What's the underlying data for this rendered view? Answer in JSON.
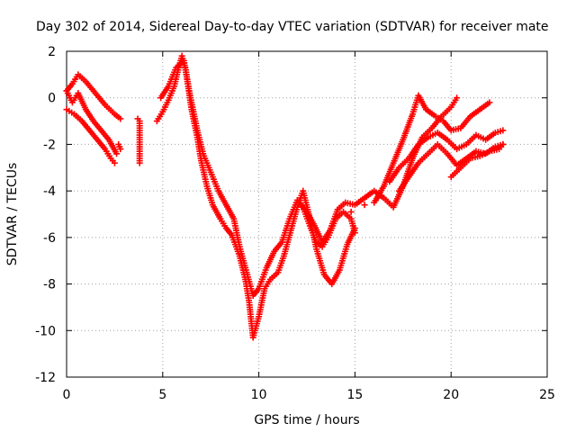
{
  "chart_data": {
    "type": "scatter",
    "title": "Day 302 of 2014, Sidereal Day-to-day VTEC variation (SDTVAR) for receiver mate",
    "xlabel": "GPS time / hours",
    "ylabel": "SDTVAR / TECUs",
    "xlim": [
      0,
      25
    ],
    "ylim": [
      -12,
      2
    ],
    "x_ticks": [
      "0",
      "5",
      "10",
      "15",
      "20",
      "25"
    ],
    "y_ticks": [
      "2",
      "0",
      "-2",
      "-4",
      "-6",
      "-8",
      "-10",
      "-12"
    ],
    "grid": true,
    "marker": "+",
    "color": "#ff0000",
    "series": [
      {
        "points": [
          [
            0,
            0.3
          ],
          [
            0.3,
            0.6
          ],
          [
            0.6,
            1.0
          ],
          [
            1.0,
            0.7
          ],
          [
            1.5,
            0.2
          ],
          [
            2.0,
            -0.3
          ],
          [
            2.5,
            -0.7
          ],
          [
            2.8,
            -0.9
          ]
        ]
      },
      {
        "points": [
          [
            0,
            -0.5
          ],
          [
            0.4,
            -0.7
          ],
          [
            0.8,
            -1.0
          ],
          [
            1.2,
            -1.4
          ],
          [
            1.6,
            -1.8
          ],
          [
            2.0,
            -2.2
          ],
          [
            2.3,
            -2.6
          ],
          [
            2.5,
            -2.8
          ]
        ]
      },
      {
        "points": [
          [
            2.7,
            -2.0
          ],
          [
            2.8,
            -2.2
          ],
          [
            3.7,
            -0.9
          ],
          [
            3.8,
            -1.0
          ],
          [
            3.8,
            -2.0
          ],
          [
            3.8,
            -2.8
          ]
        ]
      },
      {
        "points": [
          [
            4.7,
            -1.0
          ],
          [
            5.0,
            -0.6
          ],
          [
            5.3,
            -0.1
          ],
          [
            5.6,
            0.5
          ],
          [
            5.8,
            1.2
          ],
          [
            6.0,
            1.8
          ],
          [
            6.2,
            1.2
          ],
          [
            6.5,
            -0.5
          ],
          [
            6.8,
            -1.7
          ],
          [
            7.0,
            -2.7
          ],
          [
            7.3,
            -3.8
          ],
          [
            7.6,
            -4.6
          ],
          [
            8.0,
            -5.2
          ],
          [
            8.3,
            -5.6
          ],
          [
            8.6,
            -5.9
          ],
          [
            9.0,
            -6.8
          ],
          [
            9.3,
            -7.8
          ],
          [
            9.5,
            -8.8
          ],
          [
            9.7,
            -10.3
          ],
          [
            10.0,
            -9.4
          ],
          [
            10.3,
            -8.2
          ],
          [
            10.6,
            -7.8
          ],
          [
            11.0,
            -7.5
          ],
          [
            11.3,
            -6.8
          ],
          [
            11.7,
            -5.6
          ],
          [
            12.0,
            -4.7
          ],
          [
            12.3,
            -4.0
          ],
          [
            12.6,
            -5.0
          ],
          [
            13.0,
            -6.5
          ],
          [
            13.4,
            -7.6
          ],
          [
            13.8,
            -8.0
          ],
          [
            14.2,
            -7.4
          ],
          [
            14.6,
            -6.3
          ],
          [
            15.0,
            -5.6
          ]
        ]
      },
      {
        "points": [
          [
            4.9,
            0.0
          ],
          [
            5.3,
            0.5
          ],
          [
            5.7,
            1.3
          ],
          [
            6.1,
            1.6
          ],
          [
            6.4,
            0.2
          ],
          [
            6.8,
            -1.4
          ],
          [
            7.1,
            -2.4
          ],
          [
            7.5,
            -3.2
          ],
          [
            7.9,
            -4.0
          ],
          [
            8.3,
            -4.6
          ],
          [
            8.7,
            -5.2
          ],
          [
            9.0,
            -6.4
          ],
          [
            9.4,
            -7.6
          ],
          [
            9.7,
            -8.5
          ],
          [
            10.0,
            -8.2
          ],
          [
            10.4,
            -7.3
          ],
          [
            10.8,
            -6.6
          ],
          [
            11.2,
            -6.2
          ],
          [
            11.6,
            -5.2
          ],
          [
            12.0,
            -4.4
          ],
          [
            12.5,
            -4.9
          ],
          [
            12.9,
            -5.5
          ],
          [
            13.3,
            -6.2
          ],
          [
            13.7,
            -5.7
          ],
          [
            14.1,
            -4.8
          ],
          [
            14.5,
            -4.5
          ],
          [
            15.0,
            -4.6
          ],
          [
            15.5,
            -4.3
          ],
          [
            16.0,
            -4.0
          ],
          [
            16.5,
            -4.3
          ],
          [
            17.0,
            -4.7
          ],
          [
            17.5,
            -3.8
          ],
          [
            18.0,
            -2.6
          ],
          [
            18.5,
            -1.7
          ],
          [
            19.0,
            -1.3
          ],
          [
            19.5,
            -0.8
          ],
          [
            20.0,
            -0.4
          ],
          [
            20.3,
            0.0
          ]
        ]
      },
      {
        "points": [
          [
            16.0,
            -4.5
          ],
          [
            16.5,
            -3.8
          ],
          [
            17.0,
            -2.8
          ],
          [
            17.5,
            -1.8
          ],
          [
            18.0,
            -0.7
          ],
          [
            18.3,
            0.1
          ],
          [
            18.7,
            -0.5
          ],
          [
            19.2,
            -0.8
          ],
          [
            19.6,
            -1.0
          ],
          [
            20.0,
            -1.4
          ],
          [
            20.5,
            -1.3
          ],
          [
            21.0,
            -0.8
          ],
          [
            21.5,
            -0.5
          ],
          [
            22.0,
            -0.2
          ]
        ]
      },
      {
        "points": [
          [
            14.8,
            -4.9
          ],
          [
            15.5,
            -4.6
          ],
          [
            16.2,
            -4.3
          ],
          [
            16.8,
            -3.6
          ],
          [
            17.3,
            -3.0
          ],
          [
            17.8,
            -2.6
          ],
          [
            18.3,
            -2.0
          ],
          [
            18.8,
            -1.7
          ],
          [
            19.3,
            -1.5
          ],
          [
            19.8,
            -1.8
          ],
          [
            20.3,
            -2.2
          ],
          [
            20.8,
            -2.0
          ],
          [
            21.3,
            -1.6
          ],
          [
            21.8,
            -1.8
          ],
          [
            22.3,
            -1.5
          ],
          [
            22.7,
            -1.4
          ]
        ]
      },
      {
        "points": [
          [
            17.3,
            -4.0
          ],
          [
            17.8,
            -3.4
          ],
          [
            18.3,
            -2.8
          ],
          [
            18.8,
            -2.4
          ],
          [
            19.3,
            -2.0
          ],
          [
            19.8,
            -2.4
          ],
          [
            20.3,
            -2.9
          ],
          [
            20.8,
            -2.6
          ],
          [
            21.3,
            -2.3
          ],
          [
            21.8,
            -2.4
          ],
          [
            22.3,
            -2.1
          ],
          [
            22.7,
            -2.0
          ]
        ]
      },
      {
        "points": [
          [
            20.0,
            -3.4
          ],
          [
            20.5,
            -3.0
          ],
          [
            21.0,
            -2.6
          ],
          [
            21.5,
            -2.5
          ],
          [
            22.0,
            -2.3
          ],
          [
            22.5,
            -2.2
          ],
          [
            22.7,
            -2.0
          ]
        ]
      },
      {
        "points": [
          [
            12.3,
            -4.7
          ],
          [
            12.7,
            -5.6
          ],
          [
            13.0,
            -6.2
          ],
          [
            13.3,
            -6.4
          ],
          [
            13.6,
            -6.0
          ],
          [
            14.0,
            -5.2
          ],
          [
            14.4,
            -4.9
          ],
          [
            14.8,
            -5.2
          ],
          [
            15.0,
            -5.8
          ]
        ]
      },
      {
        "points": [
          [
            0,
            0.3
          ],
          [
            0.3,
            -0.2
          ],
          [
            0.6,
            0.2
          ],
          [
            1.0,
            -0.5
          ],
          [
            1.4,
            -1.0
          ],
          [
            1.8,
            -1.4
          ],
          [
            2.2,
            -1.8
          ],
          [
            2.6,
            -2.4
          ]
        ]
      }
    ]
  }
}
